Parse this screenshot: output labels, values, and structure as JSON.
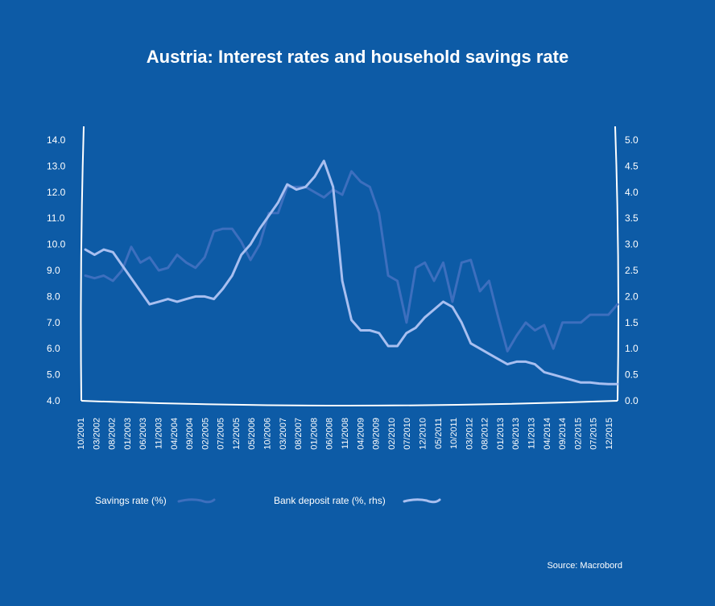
{
  "chart_data": {
    "type": "line",
    "title": "Austria: Interest rates and household savings rate",
    "source": "Source: Macrobord",
    "x_tick_labels": [
      "10/2001",
      "03/2002",
      "08/2002",
      "01/2003",
      "06/2003",
      "11/2003",
      "04/2004",
      "09/2004",
      "02/2005",
      "07/2005",
      "12/2005",
      "05/2006",
      "10/2006",
      "03/2007",
      "08/2007",
      "01/2008",
      "06/2008",
      "11/2008",
      "04/2009",
      "09/2009",
      "02/2010",
      "07/2010",
      "12/2010",
      "05/2011",
      "10/2011",
      "03/2012",
      "08/2012",
      "01/2013",
      "06/2013",
      "11/2013",
      "04/2014",
      "09/2014",
      "02/2015",
      "07/2015",
      "12/2015"
    ],
    "y_left": {
      "ticks": [
        "4.0",
        "5.0",
        "6.0",
        "7.0",
        "8.0",
        "9.0",
        "10.0",
        "11.0",
        "12.0",
        "13.0",
        "14.0"
      ],
      "ylim": [
        4,
        14
      ]
    },
    "y_right": {
      "ticks": [
        "0.0",
        "0.5",
        "1.0",
        "1.5",
        "2.0",
        "2.5",
        "3.0",
        "3.5",
        "4.0",
        "4.5",
        "5.0"
      ],
      "ylim": [
        0,
        5
      ]
    },
    "series": [
      {
        "name": "Savings rate (%)",
        "axis": "left",
        "color": "#3d6fbe",
        "values": [
          8.8,
          8.7,
          8.8,
          8.6,
          9.0,
          9.9,
          9.3,
          9.5,
          9.0,
          9.1,
          9.6,
          9.3,
          9.1,
          9.5,
          10.5,
          10.6,
          10.6,
          10.1,
          9.4,
          10.0,
          11.2,
          11.2,
          12.2,
          12.2,
          12.2,
          12.0,
          11.8,
          12.1,
          11.9,
          12.8,
          12.4,
          12.2,
          11.2,
          8.8,
          8.6,
          7.0,
          9.1,
          9.3,
          8.6,
          9.3,
          7.8,
          9.3,
          9.4,
          8.2,
          8.6,
          7.2,
          5.9,
          6.5,
          7.0,
          6.7,
          6.9,
          6.0,
          7.0,
          7.0,
          7.0,
          7.3,
          7.3,
          7.3,
          7.7
        ]
      },
      {
        "name": "Bank deposit rate (%, rhs)",
        "axis": "right",
        "color": "#a8bff0",
        "values": [
          2.9,
          2.8,
          2.9,
          2.85,
          2.6,
          2.35,
          2.1,
          1.85,
          1.9,
          1.95,
          1.9,
          1.95,
          2.0,
          2.0,
          1.95,
          2.15,
          2.4,
          2.8,
          3.0,
          3.3,
          3.55,
          3.8,
          4.15,
          4.05,
          4.1,
          4.3,
          4.6,
          4.1,
          2.3,
          1.55,
          1.35,
          1.35,
          1.3,
          1.05,
          1.05,
          1.3,
          1.4,
          1.6,
          1.75,
          1.9,
          1.8,
          1.5,
          1.1,
          1.0,
          0.9,
          0.8,
          0.7,
          0.75,
          0.75,
          0.7,
          0.55,
          0.5,
          0.45,
          0.4,
          0.35,
          0.35,
          0.33,
          0.32,
          0.32
        ]
      }
    ]
  }
}
